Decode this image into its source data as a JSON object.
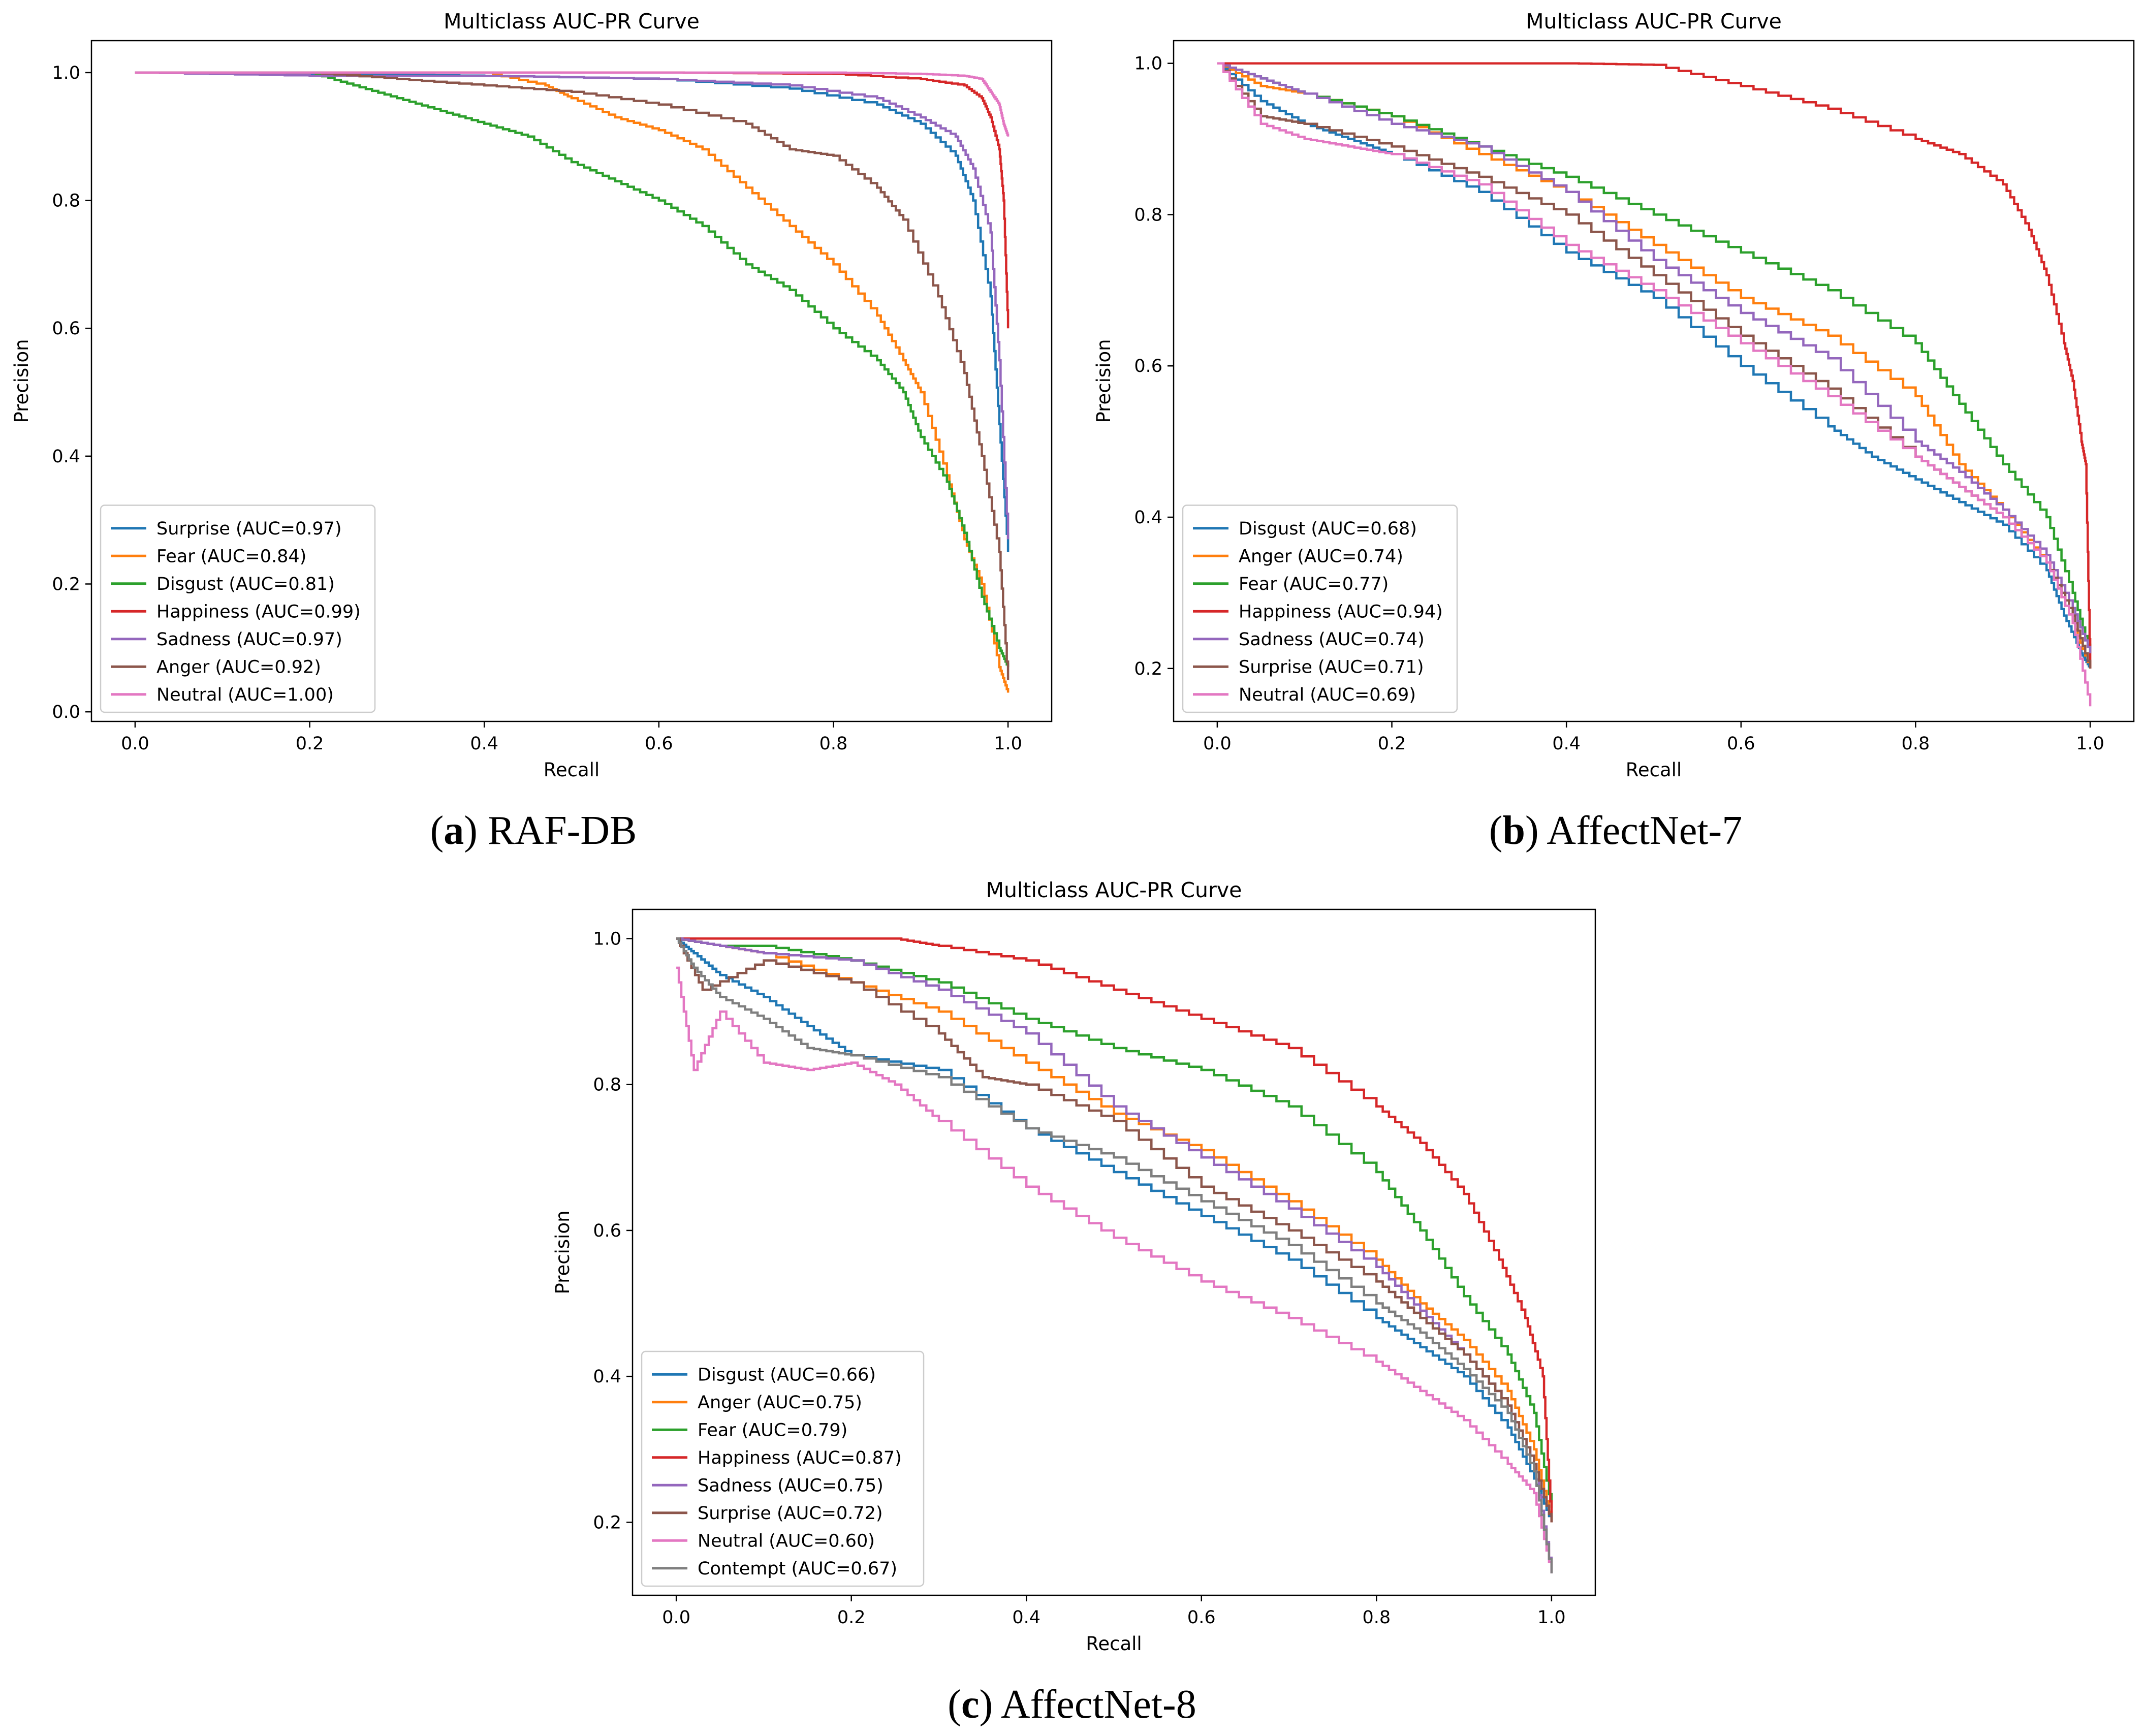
{
  "panels": [
    {
      "letter": "a",
      "name": "RAF-DB"
    },
    {
      "letter": "b",
      "name": "AffectNet-7"
    },
    {
      "letter": "c",
      "name": "AffectNet-8"
    }
  ],
  "colors": {
    "blue": "#1f77b4",
    "orange": "#ff7f0e",
    "green": "#2ca02c",
    "red": "#d62728",
    "purple": "#9467bd",
    "brown": "#8c564b",
    "pink": "#e377c2",
    "gray": "#7f7f7f"
  },
  "chart_data": [
    {
      "type": "line",
      "title": "Multiclass AUC-PR Curve",
      "xlabel": "Recall",
      "ylabel": "Precision",
      "xlim": [
        -0.05,
        1.05
      ],
      "ylim": [
        -0.015,
        1.05
      ],
      "xticks": [
        "0.0",
        "0.2",
        "0.4",
        "0.6",
        "0.8",
        "1.0"
      ],
      "yticks": [
        "0.0",
        "0.2",
        "0.4",
        "0.6",
        "0.8",
        "1.0"
      ],
      "legend_position": "lower-left",
      "series": [
        {
          "name": "Surprise (AUC=0.97)",
          "color": "blue",
          "x": [
            0.0,
            0.2,
            0.4,
            0.6,
            0.75,
            0.85,
            0.9,
            0.94,
            0.96,
            0.98,
            0.99,
            1.0
          ],
          "y": [
            1.0,
            0.998,
            0.995,
            0.99,
            0.975,
            0.95,
            0.92,
            0.87,
            0.8,
            0.65,
            0.45,
            0.25
          ]
        },
        {
          "name": "Fear (AUC=0.84)",
          "color": "orange",
          "x": [
            0.0,
            0.4,
            0.47,
            0.5,
            0.55,
            0.6,
            0.65,
            0.7,
            0.75,
            0.8,
            0.85,
            0.88,
            0.9,
            0.93,
            0.95,
            0.97,
            0.99,
            1.0
          ],
          "y": [
            1.0,
            1.0,
            0.98,
            0.96,
            0.93,
            0.91,
            0.88,
            0.82,
            0.76,
            0.7,
            0.62,
            0.55,
            0.5,
            0.37,
            0.27,
            0.2,
            0.07,
            0.03
          ]
        },
        {
          "name": "Disgust (AUC=0.81)",
          "color": "green",
          "x": [
            0.0,
            0.2,
            0.25,
            0.3,
            0.35,
            0.4,
            0.45,
            0.5,
            0.55,
            0.6,
            0.65,
            0.7,
            0.75,
            0.8,
            0.85,
            0.88,
            0.9,
            0.93,
            0.95,
            0.97,
            0.99,
            1.0
          ],
          "y": [
            1.0,
            1.0,
            0.98,
            0.96,
            0.94,
            0.92,
            0.9,
            0.86,
            0.83,
            0.8,
            0.76,
            0.7,
            0.66,
            0.6,
            0.55,
            0.5,
            0.43,
            0.36,
            0.28,
            0.18,
            0.1,
            0.07
          ]
        },
        {
          "name": "Happiness (AUC=0.99)",
          "color": "red",
          "x": [
            0.0,
            0.4,
            0.6,
            0.8,
            0.9,
            0.95,
            0.97,
            0.98,
            0.99,
            0.995,
            1.0
          ],
          "y": [
            1.0,
            1.0,
            1.0,
            0.998,
            0.99,
            0.98,
            0.96,
            0.93,
            0.88,
            0.8,
            0.6
          ]
        },
        {
          "name": "Sadness (AUC=0.97)",
          "color": "purple",
          "x": [
            0.0,
            0.2,
            0.4,
            0.6,
            0.75,
            0.85,
            0.9,
            0.94,
            0.96,
            0.98,
            0.99,
            1.0
          ],
          "y": [
            1.0,
            0.995,
            0.995,
            0.99,
            0.98,
            0.96,
            0.93,
            0.9,
            0.85,
            0.75,
            0.55,
            0.27
          ]
        },
        {
          "name": "Anger (AUC=0.92)",
          "color": "brown",
          "x": [
            0.0,
            0.2,
            0.3,
            0.4,
            0.5,
            0.6,
            0.7,
            0.75,
            0.8,
            0.85,
            0.88,
            0.92,
            0.95,
            0.97,
            0.99,
            1.0
          ],
          "y": [
            1.0,
            1.0,
            0.99,
            0.98,
            0.97,
            0.95,
            0.92,
            0.88,
            0.87,
            0.82,
            0.77,
            0.65,
            0.53,
            0.4,
            0.25,
            0.05
          ]
        },
        {
          "name": "Neutral (AUC=1.00)",
          "color": "pink",
          "x": [
            0.0,
            0.5,
            0.8,
            0.9,
            0.95,
            0.97,
            0.98,
            0.99,
            0.995,
            1.0
          ],
          "y": [
            1.0,
            1.0,
            1.0,
            0.998,
            0.995,
            0.99,
            0.97,
            0.95,
            0.92,
            0.9
          ]
        }
      ]
    },
    {
      "type": "line",
      "title": "Multiclass AUC-PR Curve",
      "xlabel": "Recall",
      "ylabel": "Precision",
      "xlim": [
        -0.05,
        1.05
      ],
      "ylim": [
        0.13,
        1.03
      ],
      "xticks": [
        "0.0",
        "0.2",
        "0.4",
        "0.6",
        "0.8",
        "1.0"
      ],
      "yticks": [
        "0.2",
        "0.4",
        "0.6",
        "0.8",
        "1.0"
      ],
      "legend_position": "lower-left",
      "series": [
        {
          "name": "Disgust (AUC=0.68)",
          "color": "blue",
          "x": [
            0.0,
            0.05,
            0.1,
            0.15,
            0.2,
            0.3,
            0.4,
            0.5,
            0.6,
            0.7,
            0.75,
            0.8,
            0.85,
            0.9,
            0.95,
            0.97,
            0.99,
            1.0
          ],
          "y": [
            1.0,
            0.95,
            0.92,
            0.9,
            0.88,
            0.83,
            0.75,
            0.69,
            0.6,
            0.52,
            0.48,
            0.45,
            0.42,
            0.39,
            0.33,
            0.27,
            0.22,
            0.2
          ]
        },
        {
          "name": "Anger (AUC=0.74)",
          "color": "orange",
          "x": [
            0.0,
            0.05,
            0.1,
            0.2,
            0.3,
            0.4,
            0.5,
            0.6,
            0.7,
            0.8,
            0.85,
            0.9,
            0.95,
            0.98,
            1.0
          ],
          "y": [
            1.0,
            0.97,
            0.96,
            0.93,
            0.88,
            0.83,
            0.76,
            0.69,
            0.64,
            0.56,
            0.47,
            0.41,
            0.34,
            0.26,
            0.2
          ]
        },
        {
          "name": "Fear (AUC=0.77)",
          "color": "green",
          "x": [
            0.0,
            0.05,
            0.1,
            0.2,
            0.3,
            0.4,
            0.5,
            0.6,
            0.7,
            0.8,
            0.85,
            0.9,
            0.95,
            0.98,
            1.0
          ],
          "y": [
            1.0,
            0.98,
            0.96,
            0.93,
            0.89,
            0.85,
            0.8,
            0.75,
            0.7,
            0.63,
            0.55,
            0.47,
            0.4,
            0.3,
            0.22
          ]
        },
        {
          "name": "Happiness (AUC=0.94)",
          "color": "red",
          "x": [
            0.0,
            0.2,
            0.4,
            0.5,
            0.6,
            0.7,
            0.8,
            0.85,
            0.9,
            0.93,
            0.95,
            0.97,
            0.98,
            0.99,
            0.995,
            1.0
          ],
          "y": [
            1.0,
            1.0,
            1.0,
            0.998,
            0.97,
            0.94,
            0.9,
            0.88,
            0.84,
            0.78,
            0.72,
            0.63,
            0.58,
            0.5,
            0.47,
            0.2
          ]
        },
        {
          "name": "Sadness (AUC=0.74)",
          "color": "purple",
          "x": [
            0.0,
            0.05,
            0.1,
            0.2,
            0.3,
            0.4,
            0.5,
            0.6,
            0.7,
            0.8,
            0.85,
            0.9,
            0.95,
            0.98,
            1.0
          ],
          "y": [
            1.0,
            0.98,
            0.96,
            0.92,
            0.89,
            0.83,
            0.74,
            0.67,
            0.61,
            0.5,
            0.46,
            0.41,
            0.35,
            0.28,
            0.22
          ]
        },
        {
          "name": "Surprise (AUC=0.71)",
          "color": "brown",
          "x": [
            0.0,
            0.05,
            0.1,
            0.2,
            0.3,
            0.4,
            0.5,
            0.6,
            0.7,
            0.8,
            0.85,
            0.9,
            0.95,
            0.98,
            1.0
          ],
          "y": [
            1.0,
            0.93,
            0.92,
            0.89,
            0.85,
            0.8,
            0.72,
            0.64,
            0.57,
            0.48,
            0.44,
            0.4,
            0.34,
            0.27,
            0.2
          ]
        },
        {
          "name": "Neutral (AUC=0.69)",
          "color": "pink",
          "x": [
            0.0,
            0.05,
            0.1,
            0.15,
            0.2,
            0.3,
            0.4,
            0.5,
            0.6,
            0.7,
            0.8,
            0.85,
            0.9,
            0.95,
            0.98,
            1.0
          ],
          "y": [
            1.0,
            0.92,
            0.9,
            0.89,
            0.88,
            0.84,
            0.76,
            0.7,
            0.63,
            0.56,
            0.48,
            0.44,
            0.4,
            0.34,
            0.26,
            0.15
          ]
        }
      ]
    },
    {
      "type": "line",
      "title": "Multiclass AUC-PR Curve",
      "xlabel": "Recall",
      "ylabel": "Precision",
      "xlim": [
        -0.05,
        1.05
      ],
      "ylim": [
        0.1,
        1.04
      ],
      "xticks": [
        "0.0",
        "0.2",
        "0.4",
        "0.6",
        "0.8",
        "1.0"
      ],
      "yticks": [
        "0.2",
        "0.4",
        "0.6",
        "0.8",
        "1.0"
      ],
      "legend_position": "lower-left",
      "series": [
        {
          "name": "Disgust (AUC=0.66)",
          "color": "blue",
          "x": [
            0.0,
            0.02,
            0.05,
            0.1,
            0.15,
            0.2,
            0.3,
            0.4,
            0.5,
            0.6,
            0.7,
            0.8,
            0.85,
            0.9,
            0.95,
            0.98,
            1.0
          ],
          "y": [
            1.0,
            0.98,
            0.95,
            0.92,
            0.88,
            0.84,
            0.82,
            0.74,
            0.68,
            0.62,
            0.56,
            0.48,
            0.44,
            0.4,
            0.33,
            0.26,
            0.2
          ]
        },
        {
          "name": "Anger (AUC=0.75)",
          "color": "orange",
          "x": [
            0.0,
            0.05,
            0.1,
            0.2,
            0.3,
            0.4,
            0.5,
            0.6,
            0.7,
            0.8,
            0.85,
            0.9,
            0.95,
            0.98,
            1.0
          ],
          "y": [
            1.0,
            0.99,
            0.98,
            0.94,
            0.9,
            0.83,
            0.76,
            0.71,
            0.64,
            0.56,
            0.5,
            0.45,
            0.38,
            0.3,
            0.2
          ]
        },
        {
          "name": "Fear (AUC=0.79)",
          "color": "green",
          "x": [
            0.0,
            0.05,
            0.1,
            0.2,
            0.3,
            0.4,
            0.5,
            0.6,
            0.7,
            0.8,
            0.85,
            0.9,
            0.95,
            0.98,
            1.0
          ],
          "y": [
            1.0,
            0.99,
            0.99,
            0.97,
            0.94,
            0.89,
            0.85,
            0.82,
            0.77,
            0.68,
            0.6,
            0.51,
            0.43,
            0.35,
            0.22
          ]
        },
        {
          "name": "Happiness (AUC=0.87)",
          "color": "red",
          "x": [
            0.0,
            0.1,
            0.2,
            0.25,
            0.3,
            0.4,
            0.5,
            0.6,
            0.7,
            0.8,
            0.85,
            0.9,
            0.94,
            0.97,
            0.99,
            1.0
          ],
          "y": [
            1.0,
            1.0,
            1.0,
            1.0,
            0.99,
            0.97,
            0.93,
            0.89,
            0.85,
            0.77,
            0.72,
            0.65,
            0.56,
            0.48,
            0.4,
            0.2
          ]
        },
        {
          "name": "Sadness (AUC=0.75)",
          "color": "purple",
          "x": [
            0.0,
            0.05,
            0.1,
            0.2,
            0.3,
            0.4,
            0.5,
            0.6,
            0.7,
            0.8,
            0.85,
            0.9,
            0.95,
            0.98,
            1.0
          ],
          "y": [
            1.0,
            0.99,
            0.98,
            0.97,
            0.93,
            0.87,
            0.77,
            0.7,
            0.63,
            0.55,
            0.49,
            0.43,
            0.36,
            0.28,
            0.13
          ]
        },
        {
          "name": "Surprise (AUC=0.72)",
          "color": "brown",
          "x": [
            0.0,
            0.03,
            0.1,
            0.2,
            0.3,
            0.35,
            0.4,
            0.5,
            0.6,
            0.7,
            0.8,
            0.85,
            0.9,
            0.95,
            0.98,
            1.0
          ],
          "y": [
            1.0,
            0.93,
            0.97,
            0.94,
            0.87,
            0.81,
            0.8,
            0.75,
            0.66,
            0.6,
            0.53,
            0.48,
            0.43,
            0.36,
            0.28,
            0.2
          ]
        },
        {
          "name": "Neutral (AUC=0.60)",
          "color": "pink",
          "x": [
            0.0,
            0.02,
            0.05,
            0.1,
            0.15,
            0.2,
            0.25,
            0.3,
            0.4,
            0.5,
            0.6,
            0.7,
            0.8,
            0.85,
            0.9,
            0.95,
            0.98,
            1.0
          ],
          "y": [
            0.96,
            0.82,
            0.9,
            0.83,
            0.82,
            0.83,
            0.8,
            0.75,
            0.66,
            0.59,
            0.53,
            0.48,
            0.42,
            0.38,
            0.34,
            0.28,
            0.24,
            0.13
          ]
        },
        {
          "name": "Contempt (AUC=0.67)",
          "color": "gray",
          "x": [
            0.0,
            0.02,
            0.05,
            0.1,
            0.15,
            0.2,
            0.3,
            0.4,
            0.5,
            0.6,
            0.7,
            0.8,
            0.85,
            0.9,
            0.95,
            0.98,
            1.0
          ],
          "y": [
            1.0,
            0.96,
            0.92,
            0.89,
            0.85,
            0.84,
            0.81,
            0.74,
            0.7,
            0.64,
            0.58,
            0.5,
            0.46,
            0.41,
            0.35,
            0.27,
            0.13
          ]
        }
      ]
    }
  ]
}
